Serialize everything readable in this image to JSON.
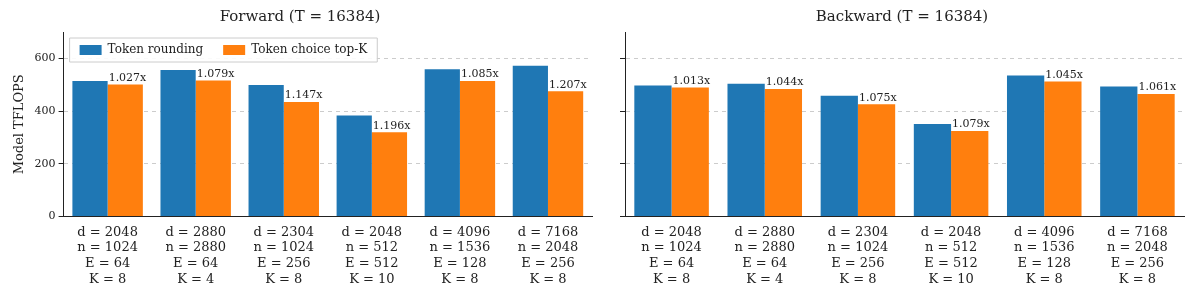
{
  "chart_data": [
    {
      "type": "bar",
      "title": "Forward (T = 16384)",
      "ylabel": "Model TFLOPS",
      "categories": [
        "d = 2048\nn = 1024\nE = 64\nK = 8",
        "d = 2880\nn = 2880\nE = 64\nK = 4",
        "d = 2304\nn = 1024\nE = 256\nK = 8",
        "d = 2048\nn = 512\nE = 512\nK = 10",
        "d = 4096\nn = 1536\nE = 128\nK = 8",
        "d = 7168\nn = 2048\nE = 256\nK = 8"
      ],
      "series": [
        {
          "name": "Token rounding",
          "color": "#1f77b4",
          "values": [
            514,
            556,
            499,
            383,
            559,
            572
          ]
        },
        {
          "name": "Token choice top-K",
          "color": "#ff7f0e",
          "values": [
            501,
            516,
            435,
            320,
            514,
            475
          ]
        }
      ],
      "annotations": [
        {
          "text": "1.027x",
          "x": "d = 2048\nn = 1024\nE = 64\nK = 8",
          "y": 501
        },
        {
          "text": "1.079x",
          "x": "d = 2880\nn = 2880\nE = 64\nK = 4",
          "y": 516
        },
        {
          "text": "1.147x",
          "x": "d = 2304\nn = 1024\nE = 256\nK = 8",
          "y": 435
        },
        {
          "text": "1.196x",
          "x": "d = 2048\nn = 512\nE = 512\nK = 10",
          "y": 320
        },
        {
          "text": "1.085x",
          "x": "d = 4096\nn = 1536\nE = 128\nK = 8",
          "y": 514
        },
        {
          "text": "1.207x",
          "x": "d = 7168\nn = 2048\nE = 256\nK = 8",
          "y": 475
        }
      ],
      "ylim": [
        0,
        700
      ],
      "yticks": [
        0,
        200,
        400,
        600
      ],
      "grid": "y",
      "legend": "top left"
    },
    {
      "type": "bar",
      "title": "Backward (T = 16384)",
      "categories": [
        "d = 2048\nn = 1024\nE = 64\nK = 8",
        "d = 2880\nn = 2880\nE = 64\nK = 4",
        "d = 2304\nn = 1024\nE = 256\nK = 8",
        "d = 2048\nn = 512\nE = 512\nK = 10",
        "d = 4096\nn = 1536\nE = 128\nK = 8",
        "d = 7168\nn = 2048\nE = 256\nK = 8"
      ],
      "series": [
        {
          "color": "#1f77b4",
          "values": [
            497,
            504,
            458,
            351,
            535,
            493
          ]
        },
        {
          "color": "#ff7f0e",
          "values": [
            490,
            484,
            426,
            325,
            512,
            465
          ]
        }
      ],
      "annotations": [
        {
          "text": "1.013x",
          "x": "d = 2048\nn = 1024\nE = 64\nK = 8",
          "y": 490
        },
        {
          "text": "1.044x",
          "x": "d = 2880\nn = 2880\nE = 64\nK = 4",
          "y": 484
        },
        {
          "text": "1.075x",
          "x": "d = 2304\nn = 1024\nE = 256\nK = 8",
          "y": 426
        },
        {
          "text": "1.079x",
          "x": "d = 2048\nn = 512\nE = 512\nK = 10",
          "y": 325
        },
        {
          "text": "1.045x",
          "x": "d = 4096\nn = 1536\nE = 128\nK = 8",
          "y": 512
        },
        {
          "text": "1.061x",
          "x": "d = 7168\nn = 2048\nE = 256\nK = 8",
          "y": 465
        }
      ],
      "ylim": [
        0,
        700
      ],
      "yticks": [
        0,
        200,
        400,
        600
      ],
      "grid": "y",
      "tick_labels": "x"
    }
  ]
}
